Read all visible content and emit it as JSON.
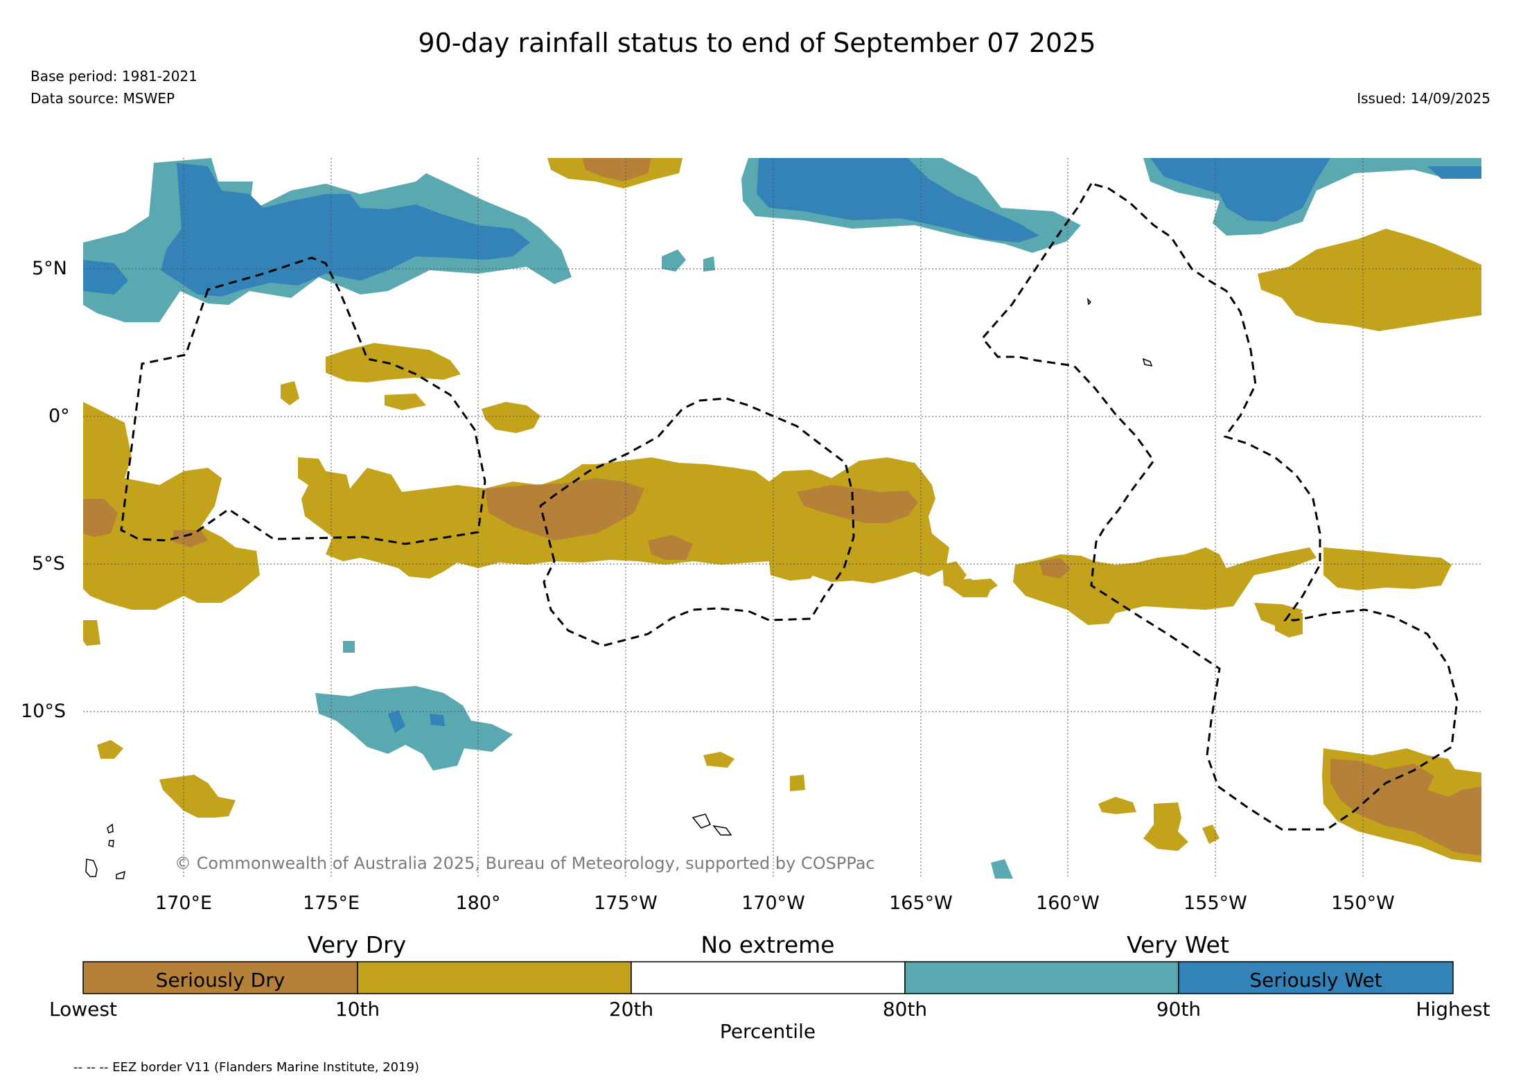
{
  "header": {
    "title": "90-day rainfall status to end of September 07 2025",
    "base_period": "Base period: 1981-2021",
    "data_source": "Data source: MSWEP",
    "issued": "Issued: 14/09/2025"
  },
  "map": {
    "lat_labels": [
      "5°N",
      "0°",
      "5°S",
      "10°S"
    ],
    "lon_labels": [
      "170°E",
      "175°E",
      "180°",
      "175°W",
      "170°W",
      "165°W",
      "160°W",
      "155°W",
      "150°W"
    ],
    "copyright": "© Commonwealth of Australia 2025, Bureau of Meteorology, supported by COSPPac",
    "colors": {
      "seriously_dry": "#b58037",
      "very_dry": "#c4a31c",
      "no_extreme": "#ffffff",
      "very_wet": "#5aa8b0",
      "seriously_wet": "#3483b8"
    }
  },
  "colorbar": {
    "group_labels": [
      "Very Dry",
      "No extreme",
      "Very Wet"
    ],
    "segment_labels": [
      "Seriously Dry",
      "",
      "",
      "",
      "Seriously Wet"
    ],
    "tick_labels": [
      "Lowest",
      "10th",
      "20th",
      "80th",
      "90th",
      "Highest"
    ],
    "axis_label": "Percentile"
  },
  "footer": {
    "eez_note": "-- -- -- EEZ border V11 (Flanders Marine Institute, 2019)"
  }
}
